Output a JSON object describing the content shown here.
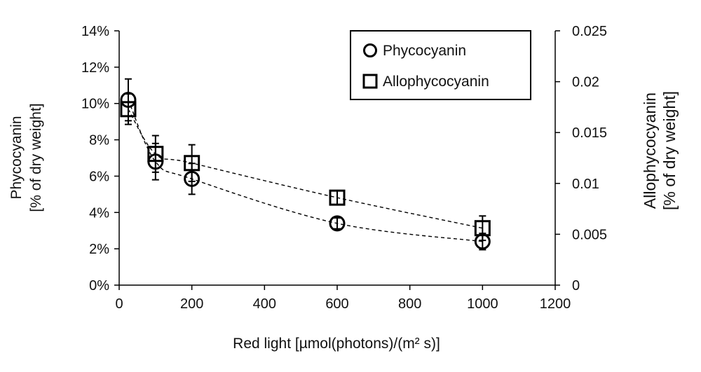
{
  "chart_data": {
    "type": "scatter",
    "title": "",
    "xlabel": "Red light [µmol(photons)/(m² s)]",
    "ylabel_left": [
      "Phycocyanin",
      "[% of dry weight]"
    ],
    "ylabel_right": [
      "Allophycocyanin",
      "[% of dry weight]"
    ],
    "xlim": [
      0,
      1200
    ],
    "ylim_left": [
      0,
      14
    ],
    "ylim_right": [
      0,
      0.025
    ],
    "x_ticks": [
      0,
      200,
      400,
      600,
      800,
      1000,
      1200
    ],
    "x_tick_labels": [
      "0",
      "200",
      "400",
      "600",
      "800",
      "1000",
      "1200"
    ],
    "y_left_ticks": [
      0,
      2,
      4,
      6,
      8,
      10,
      12,
      14
    ],
    "y_left_tick_labels": [
      "0%",
      "2%",
      "4%",
      "6%",
      "8%",
      "10%",
      "12%",
      "14%"
    ],
    "y_right_ticks": [
      0,
      0.005,
      0.01,
      0.015,
      0.02,
      0.025
    ],
    "y_right_tick_labels": [
      "0",
      "0.005",
      "0.01",
      "0.015",
      "0.02",
      "0.025"
    ],
    "grid": false,
    "legend_position": "top-right",
    "series": [
      {
        "name": "Phycocyanin",
        "marker": "circle",
        "axis": "left",
        "x": [
          25,
          100,
          200,
          600,
          1000
        ],
        "y": [
          10.2,
          6.8,
          5.85,
          3.4,
          2.4
        ],
        "err": [
          1.15,
          1.0,
          0.85,
          0.3,
          0.45
        ]
      },
      {
        "name": "Allophycocyanin",
        "marker": "square",
        "axis": "right",
        "x": [
          25,
          100,
          200,
          600,
          1000
        ],
        "y": [
          0.0173,
          0.0129,
          0.012,
          0.0086,
          0.0056
        ],
        "err": [
          0.0015,
          0.0018,
          0.0018,
          0.0007,
          0.0012
        ]
      }
    ],
    "trendlines": "dashed fitted curves for both series"
  }
}
